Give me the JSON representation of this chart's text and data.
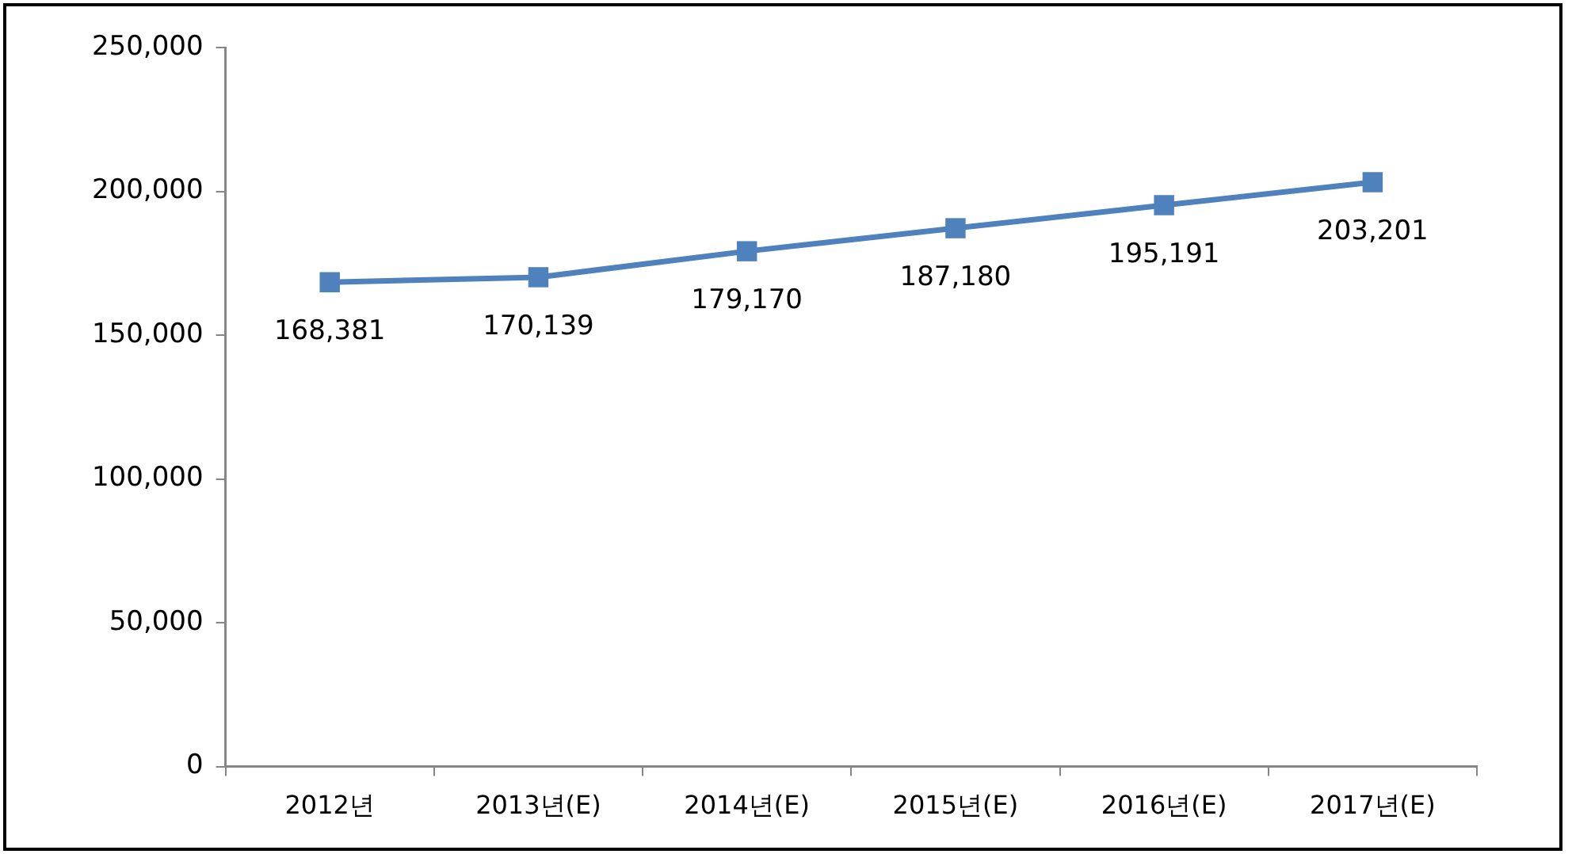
{
  "chart_data": {
    "type": "line",
    "categories": [
      "2012년",
      "2013년(E)",
      "2014년(E)",
      "2015년(E)",
      "2016년(E)",
      "2017년(E)"
    ],
    "series": [
      {
        "color": "#4f81bd",
        "values": [
          168381,
          170139,
          179170,
          187180,
          195191,
          203201
        ],
        "value_labels": [
          "168,381",
          "170,139",
          "179,170",
          "187,180",
          "195,191",
          "203,201"
        ]
      }
    ],
    "ylim": [
      0,
      250000
    ],
    "yticks": [
      {
        "value": 0,
        "label": "0"
      },
      {
        "value": 50000,
        "label": "50,000"
      },
      {
        "value": 100000,
        "label": "100,000"
      },
      {
        "value": 150000,
        "label": "150,000"
      },
      {
        "value": 200000,
        "label": "200,000"
      },
      {
        "value": 250000,
        "label": "250,000"
      }
    ],
    "grid": false,
    "legend": false,
    "marker": "square",
    "line_style": "solid"
  }
}
